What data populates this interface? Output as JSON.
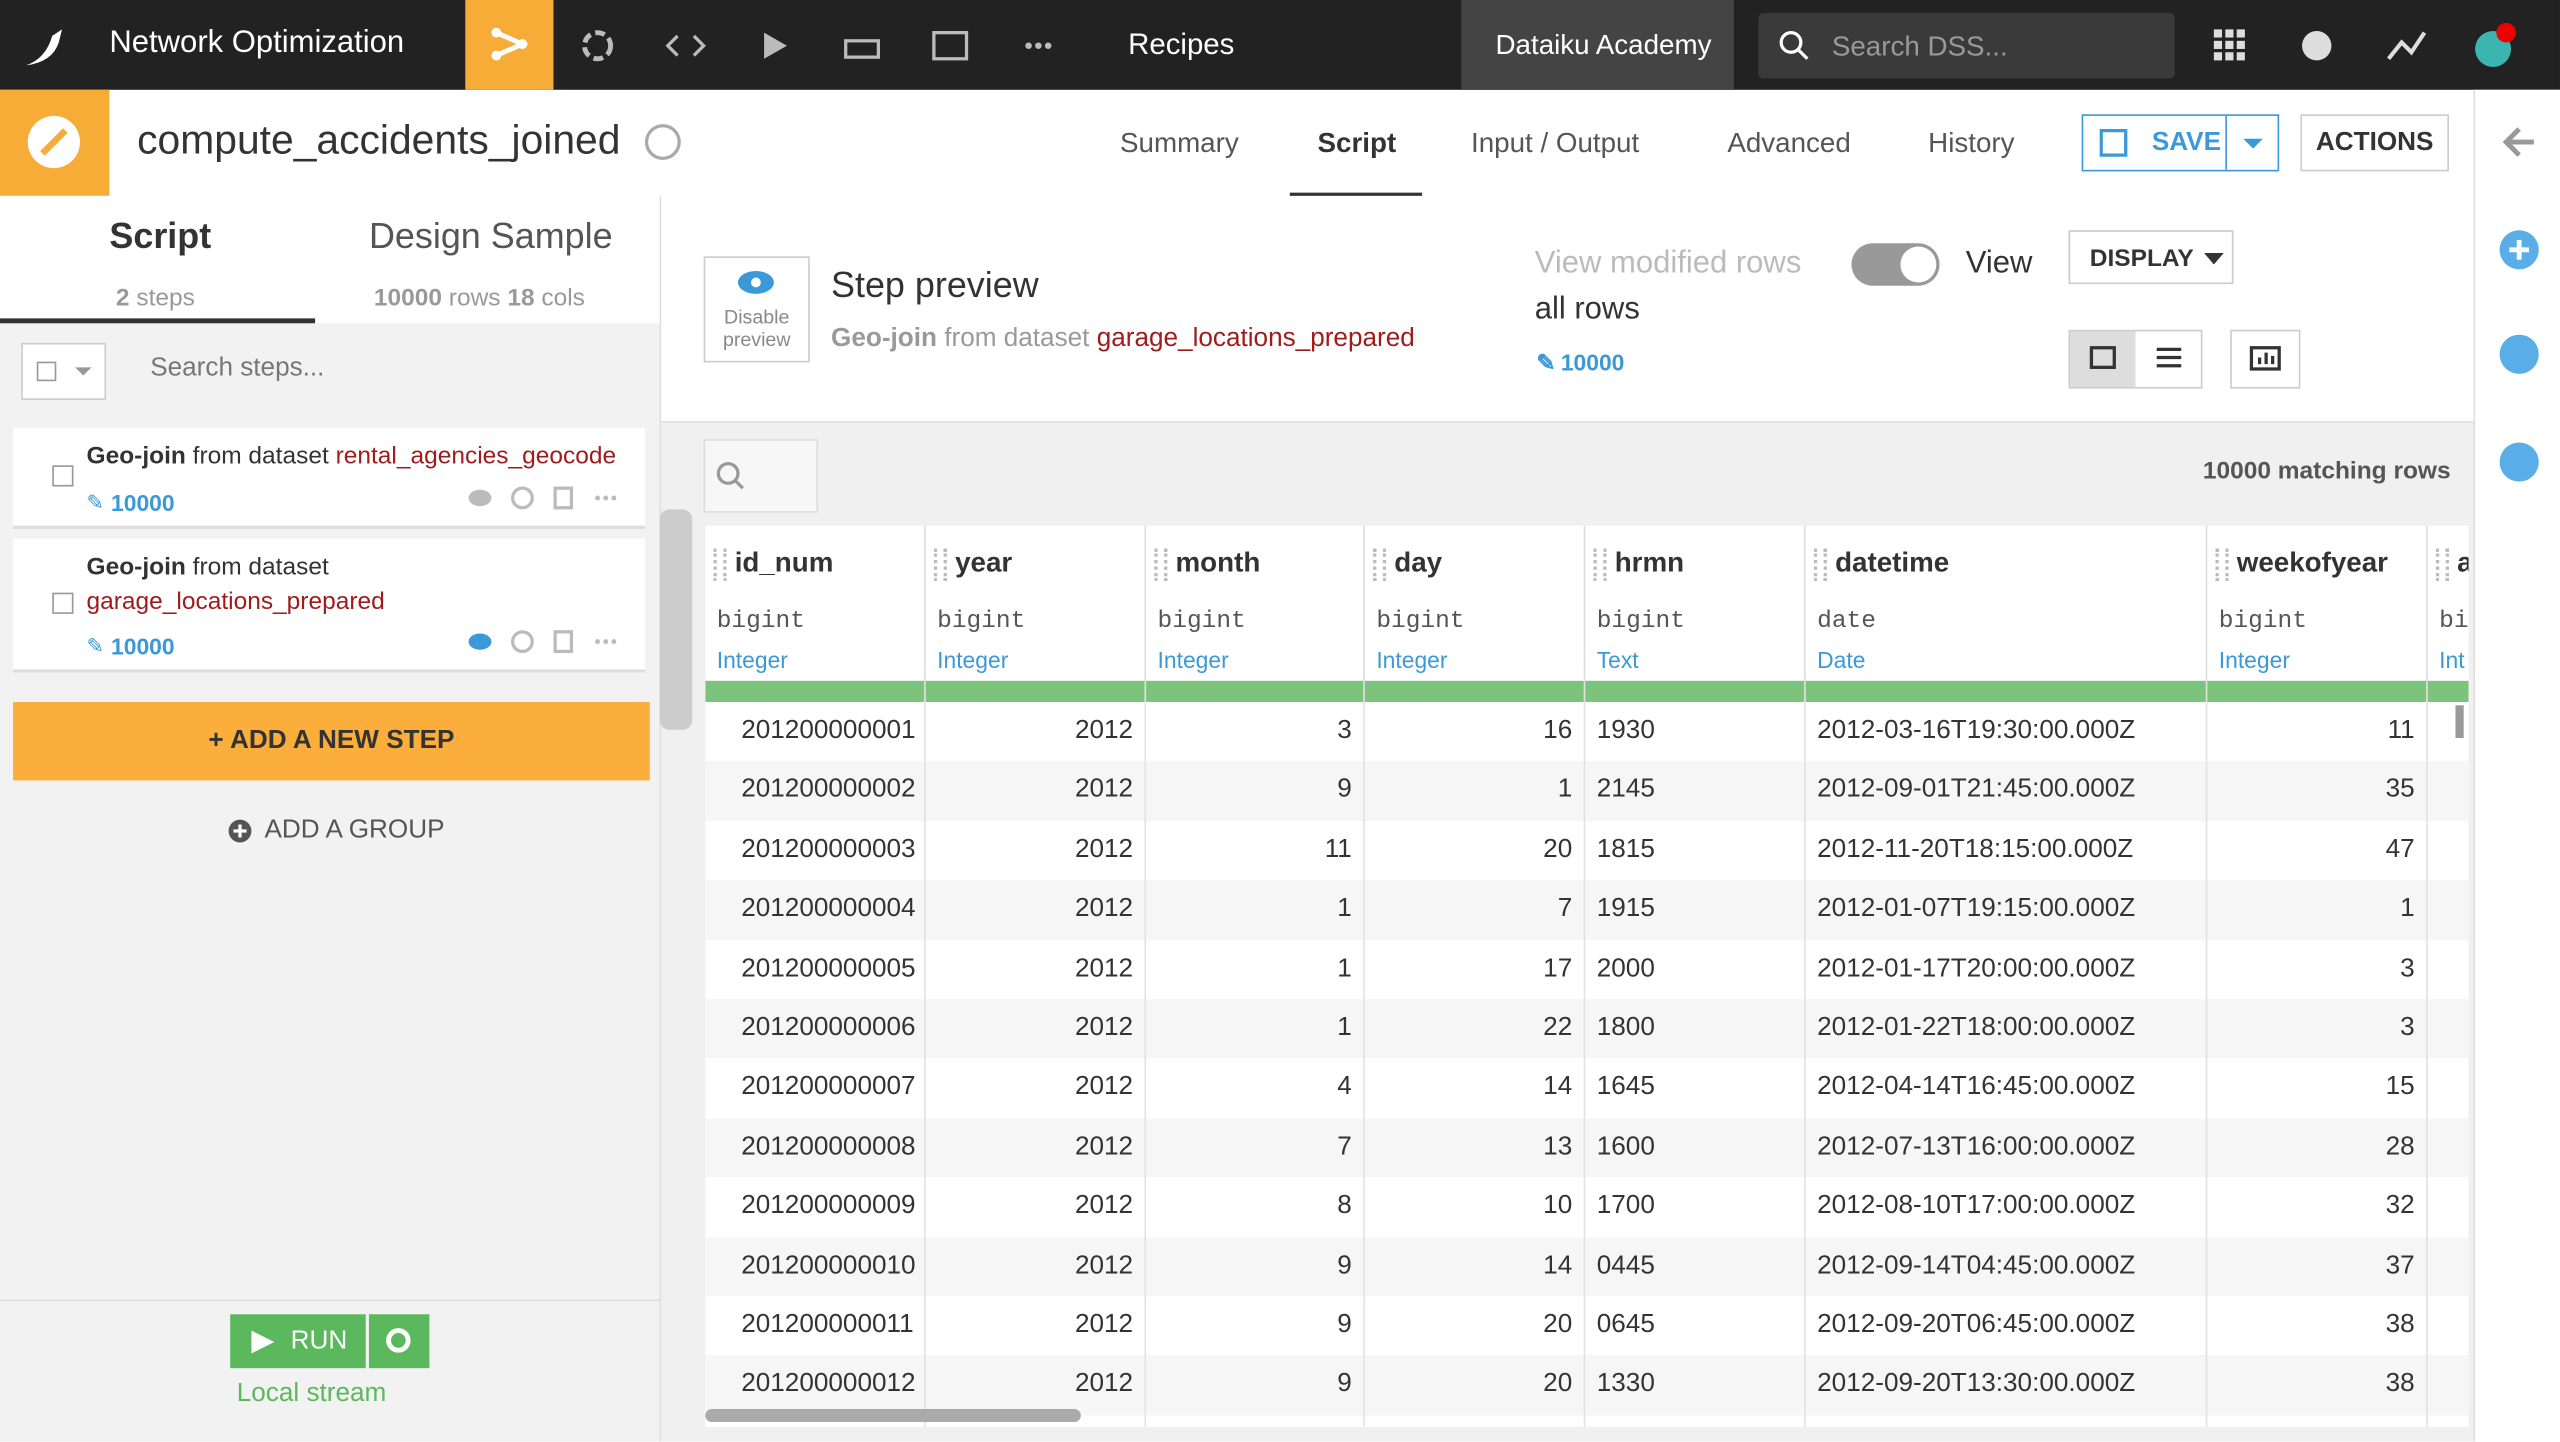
{
  "header": {
    "project": "Network Optimization",
    "section": "Recipes",
    "academy": "Dataiku Academy",
    "search_placeholder": "Search DSS..."
  },
  "recipe": {
    "name": "compute_accidents_joined",
    "tabs": [
      "Summary",
      "Script",
      "Input / Output",
      "Advanced",
      "History"
    ],
    "save": "SAVE",
    "actions": "ACTIONS"
  },
  "left_panel": {
    "script_tab": {
      "title": "Script",
      "count": "2",
      "unit": "steps"
    },
    "sample_tab": {
      "title": "Design Sample",
      "rows": "10000",
      "rows_unit": "rows",
      "cols": "18",
      "cols_unit": "cols"
    },
    "search_placeholder": "Search steps...",
    "steps": [
      {
        "name": "Geo-join",
        "text": "from dataset",
        "dataset": "rental_agencies_geocode",
        "sample": "10000"
      },
      {
        "name": "Geo-join",
        "text": "from dataset",
        "dataset": "garage_locations_prepared",
        "sample": "10000"
      }
    ],
    "add_step": "+ ADD A NEW STEP",
    "add_group": "ADD A GROUP",
    "run": "RUN",
    "stream": "Local stream"
  },
  "preview": {
    "disable_line1": "Disable",
    "disable_line2": "preview",
    "title": "Step preview",
    "step_name": "Geo-join",
    "step_text": "from dataset",
    "dataset": "garage_locations_prepared",
    "view_modified": "View modified rows",
    "view": "View",
    "all_rows": "all rows",
    "sample": "10000",
    "display": "DISPLAY",
    "matching": "10000 matching rows"
  },
  "table": {
    "columns": [
      {
        "name": "id_num",
        "storage": "bigint",
        "meaning": "Integer"
      },
      {
        "name": "year",
        "storage": "bigint",
        "meaning": "Integer"
      },
      {
        "name": "month",
        "storage": "bigint",
        "meaning": "Integer"
      },
      {
        "name": "day",
        "storage": "bigint",
        "meaning": "Integer"
      },
      {
        "name": "hrmn",
        "storage": "bigint",
        "meaning": "Text"
      },
      {
        "name": "datetime",
        "storage": "date",
        "meaning": "Date"
      },
      {
        "name": "weekofyear",
        "storage": "bigint",
        "meaning": "Integer"
      },
      {
        "name": "a",
        "storage": "bi",
        "meaning": "Int"
      }
    ],
    "rows": [
      [
        "201200000001",
        "2012",
        "3",
        "16",
        "1930",
        "2012-03-16T19:30:00.000Z",
        "11"
      ],
      [
        "201200000002",
        "2012",
        "9",
        "1",
        "2145",
        "2012-09-01T21:45:00.000Z",
        "35"
      ],
      [
        "201200000003",
        "2012",
        "11",
        "20",
        "1815",
        "2012-11-20T18:15:00.000Z",
        "47"
      ],
      [
        "201200000004",
        "2012",
        "1",
        "7",
        "1915",
        "2012-01-07T19:15:00.000Z",
        "1"
      ],
      [
        "201200000005",
        "2012",
        "1",
        "17",
        "2000",
        "2012-01-17T20:00:00.000Z",
        "3"
      ],
      [
        "201200000006",
        "2012",
        "1",
        "22",
        "1800",
        "2012-01-22T18:00:00.000Z",
        "3"
      ],
      [
        "201200000007",
        "2012",
        "4",
        "14",
        "1645",
        "2012-04-14T16:45:00.000Z",
        "15"
      ],
      [
        "201200000008",
        "2012",
        "7",
        "13",
        "1600",
        "2012-07-13T16:00:00.000Z",
        "28"
      ],
      [
        "201200000009",
        "2012",
        "8",
        "10",
        "1700",
        "2012-08-10T17:00:00.000Z",
        "32"
      ],
      [
        "201200000010",
        "2012",
        "9",
        "14",
        "0445",
        "2012-09-14T04:45:00.000Z",
        "37"
      ],
      [
        "201200000011",
        "2012",
        "9",
        "20",
        "0645",
        "2012-09-20T06:45:00.000Z",
        "38"
      ],
      [
        "201200000012",
        "2012",
        "9",
        "20",
        "1330",
        "2012-09-20T13:30:00.000Z",
        "38"
      ]
    ]
  }
}
